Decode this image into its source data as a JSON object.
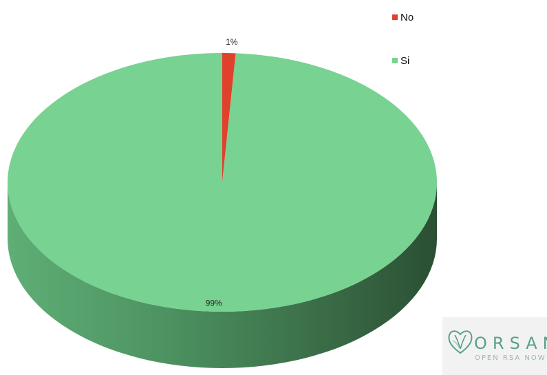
{
  "chart_data": {
    "type": "pie",
    "style": "3d",
    "title": "",
    "slices": [
      {
        "label": "No",
        "value": 1,
        "data_label": "1%",
        "color": "#e0402c"
      },
      {
        "label": "Si",
        "value": 99,
        "data_label": "99%",
        "color": "#78d291"
      }
    ],
    "legend": {
      "position": "top-right"
    }
  },
  "logo": {
    "name": "ORSAN",
    "tagline": "OPEN RSA NOW",
    "color": "#5aa088"
  }
}
